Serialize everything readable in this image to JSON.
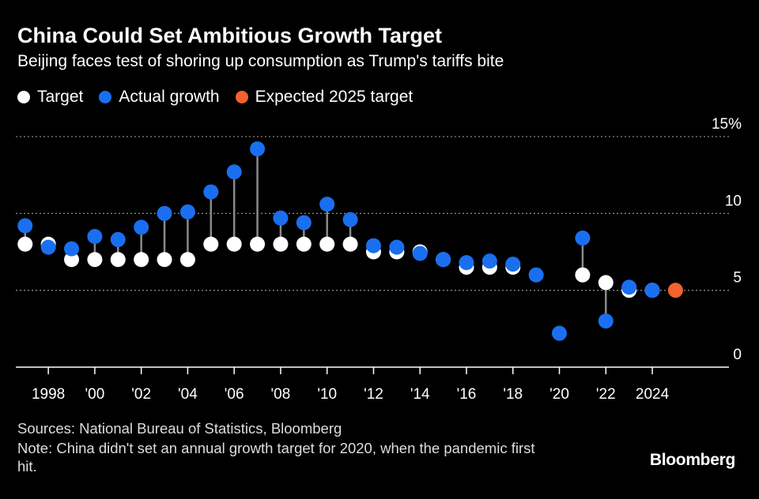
{
  "header": {
    "title": "China Could Set Ambitious Growth Target",
    "subtitle": "Beijing faces test of shoring up consumption as Trump's tariffs bite"
  },
  "legend": [
    {
      "label": "Target",
      "color": "#ffffff"
    },
    {
      "label": "Actual growth",
      "color": "#1a6ff0"
    },
    {
      "label": "Expected 2025 target",
      "color": "#f2622e"
    }
  ],
  "chart_data": {
    "type": "scatter",
    "x": [
      1997,
      1998,
      1999,
      2000,
      2001,
      2002,
      2003,
      2004,
      2005,
      2006,
      2007,
      2008,
      2009,
      2010,
      2011,
      2012,
      2013,
      2014,
      2015,
      2016,
      2017,
      2018,
      2019,
      2020,
      2021,
      2022,
      2023,
      2024,
      2025
    ],
    "series": [
      {
        "name": "Target",
        "color": "#ffffff",
        "values": [
          8,
          8,
          7,
          7,
          7,
          7,
          7,
          7,
          8,
          8,
          8,
          8,
          8,
          8,
          8,
          7.5,
          7.5,
          7.5,
          7,
          6.5,
          6.5,
          6.5,
          null,
          null,
          6,
          5.5,
          5,
          5,
          null
        ]
      },
      {
        "name": "Actual growth",
        "color": "#1a6ff0",
        "values": [
          9.2,
          7.8,
          7.7,
          8.5,
          8.3,
          9.1,
          10.0,
          10.1,
          11.4,
          12.7,
          14.2,
          9.7,
          9.4,
          10.6,
          9.6,
          7.9,
          7.8,
          7.4,
          7.0,
          6.8,
          6.9,
          6.7,
          6.0,
          2.2,
          8.4,
          3.0,
          5.2,
          5.0,
          null
        ]
      },
      {
        "name": "Expected 2025 target",
        "color": "#f2622e",
        "values": [
          null,
          null,
          null,
          null,
          null,
          null,
          null,
          null,
          null,
          null,
          null,
          null,
          null,
          null,
          null,
          null,
          null,
          null,
          null,
          null,
          null,
          null,
          null,
          null,
          null,
          null,
          null,
          null,
          5
        ]
      }
    ],
    "y_ticks": [
      {
        "value": 0,
        "label": "0"
      },
      {
        "value": 5,
        "label": "5"
      },
      {
        "value": 10,
        "label": "10"
      },
      {
        "value": 15,
        "label": "15%"
      }
    ],
    "x_ticks": [
      {
        "value": 1998,
        "label": "1998"
      },
      {
        "value": 2000,
        "label": "'00"
      },
      {
        "value": 2002,
        "label": "'02"
      },
      {
        "value": 2004,
        "label": "'04"
      },
      {
        "value": 2006,
        "label": "'06"
      },
      {
        "value": 2008,
        "label": "'08"
      },
      {
        "value": 2010,
        "label": "'10"
      },
      {
        "value": 2012,
        "label": "'12"
      },
      {
        "value": 2014,
        "label": "'14"
      },
      {
        "value": 2016,
        "label": "'16"
      },
      {
        "value": 2018,
        "label": "'18"
      },
      {
        "value": 2020,
        "label": "'20"
      },
      {
        "value": 2022,
        "label": "'22"
      },
      {
        "value": 2024,
        "label": "2024"
      }
    ],
    "xlim": [
      1996.6,
      2027.3
    ],
    "ylim": [
      0,
      15
    ],
    "grid": true
  },
  "footer": {
    "source": "Sources: National Bureau of Statistics, Bloomberg",
    "note": "Note: China didn't set an annual growth target for 2020, when the pandemic first hit.",
    "brand": "Bloomberg"
  }
}
